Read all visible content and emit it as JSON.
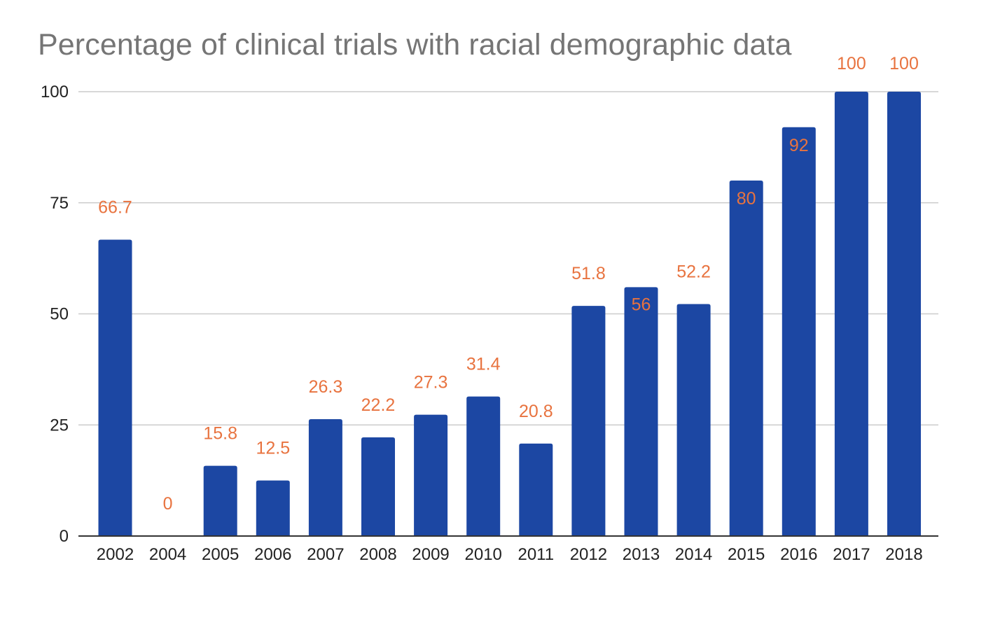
{
  "chart_data": {
    "type": "bar",
    "title": "Percentage of clinical trials with racial demographic data",
    "xlabel": "",
    "ylabel": "",
    "categories": [
      "2002",
      "2004",
      "2005",
      "2006",
      "2007",
      "2008",
      "2009",
      "2010",
      "2011",
      "2012",
      "2013",
      "2014",
      "2015",
      "2016",
      "2017",
      "2018"
    ],
    "values": [
      66.7,
      0,
      15.8,
      12.5,
      26.3,
      22.2,
      27.3,
      31.4,
      20.8,
      51.8,
      56,
      52.2,
      80,
      92,
      100,
      100
    ],
    "data_labels": [
      "66.7",
      "0",
      "15.8",
      "12.5",
      "26.3",
      "22.2",
      "27.3",
      "31.4",
      "20.8",
      "51.8",
      "56",
      "52.2",
      "80",
      "92",
      "100",
      "100"
    ],
    "ylim": [
      0,
      100
    ],
    "yticks": [
      0,
      25,
      50,
      75,
      100
    ],
    "ytick_labels": [
      "0",
      "25",
      "50",
      "75",
      "100"
    ],
    "grid": true,
    "legend": "none",
    "colors": {
      "bar": "#1c47a3",
      "data_label": "#e8733f",
      "title": "#757575",
      "gridline": "#cccccc",
      "axis": "#333333"
    }
  }
}
